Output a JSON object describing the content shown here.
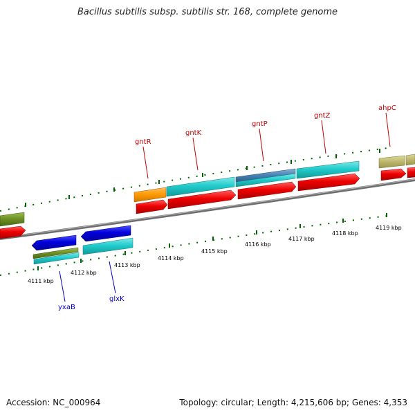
{
  "title": "Bacillus subtilis subsp. subtilis str. 168, complete genome",
  "accession_label": "Accession: NC_000964",
  "stats_label": "Topology: circular; Length: 4,215,606 bp; Genes: 4,353",
  "ticks": [
    "4111 kbp",
    "4112 kbp",
    "4113 kbp",
    "4114 kbp",
    "4115 kbp",
    "4116 kbp",
    "4117 kbp",
    "4118 kbp",
    "4119 kbp"
  ],
  "genes_top": [
    "gntR",
    "gntK",
    "gntP",
    "gntZ",
    "ahpC"
  ],
  "genes_bottom": [
    "yxaB",
    "glxK"
  ],
  "colors": {
    "cds_forward": "#ee0000",
    "cds_reverse": "#0000dd",
    "cyan": "#22cccc",
    "orange": "#ff9900",
    "olive": "#6b8e23",
    "steelblue": "#4682b4",
    "khaki": "#bdb76b",
    "tick_green": "#006400",
    "backbone": "#808080",
    "gene_label_top": "#c00000",
    "gene_label_bottom": "#0000cc"
  }
}
